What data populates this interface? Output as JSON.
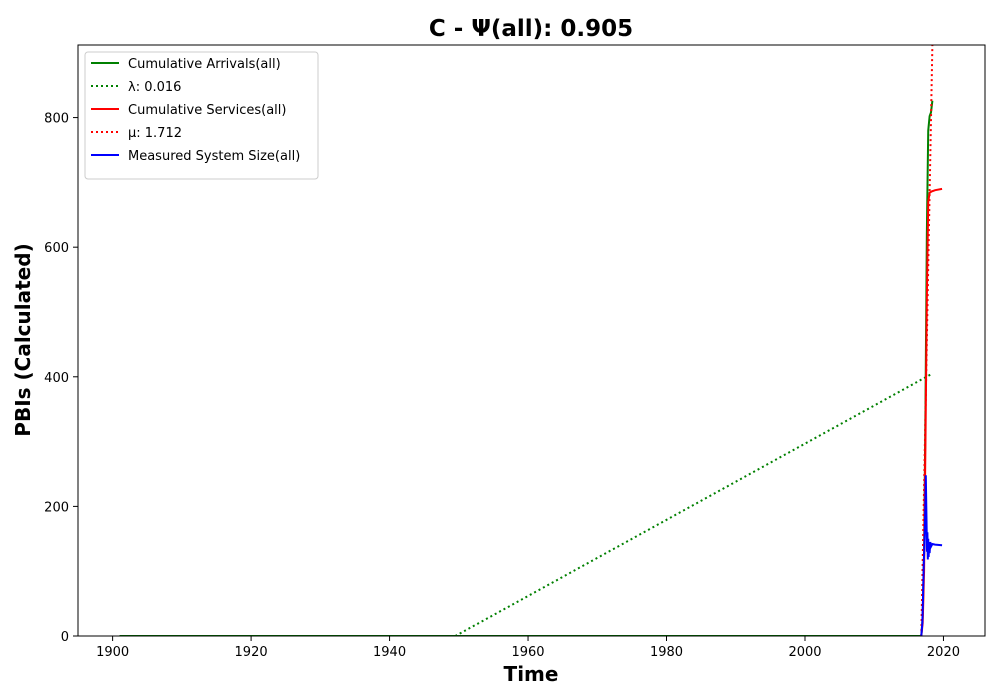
{
  "chart_data": {
    "type": "line",
    "title": "C -  Ψ(all): 0.905",
    "xlabel": "Time",
    "ylabel": "PBIs (Calculated)",
    "xlim": [
      1895,
      2026
    ],
    "ylim": [
      0,
      912
    ],
    "xticks": [
      1900,
      1920,
      1940,
      1960,
      1980,
      2000,
      2020
    ],
    "yticks": [
      0,
      200,
      400,
      600,
      800
    ],
    "grid": false,
    "legend_position": "top-left",
    "series": [
      {
        "name": "Cumulative Arrivals(all)",
        "color": "#008000",
        "dash": "solid",
        "points": [
          [
            1901,
            0
          ],
          [
            2016.8,
            0
          ],
          [
            2017.0,
            30
          ],
          [
            2017.2,
            130
          ],
          [
            2017.4,
            350
          ],
          [
            2017.6,
            620
          ],
          [
            2017.8,
            780
          ],
          [
            2018.0,
            802
          ],
          [
            2018.2,
            808
          ],
          [
            2018.4,
            826
          ]
        ]
      },
      {
        "name": "λ: 0.016",
        "color": "#008000",
        "dash": "dotted",
        "points": [
          [
            1949.5,
            0
          ],
          [
            2018.4,
            405
          ]
        ]
      },
      {
        "name": "Cumulative Services(all)",
        "color": "#ff0000",
        "dash": "solid",
        "points": [
          [
            2016.8,
            0
          ],
          [
            2017.0,
            20
          ],
          [
            2017.2,
            100
          ],
          [
            2017.4,
            300
          ],
          [
            2017.6,
            520
          ],
          [
            2017.8,
            670
          ],
          [
            2018.0,
            684
          ],
          [
            2018.3,
            686
          ],
          [
            2018.8,
            688
          ],
          [
            2019.8,
            690
          ]
        ]
      },
      {
        "name": "μ: 1.712",
        "color": "#ff0000",
        "dash": "dotted",
        "points": [
          [
            2016.8,
            0
          ],
          [
            2018.4,
            912
          ]
        ]
      },
      {
        "name": "Measured System Size(all)",
        "color": "#0000ff",
        "dash": "solid",
        "points": [
          [
            2016.8,
            0
          ],
          [
            2016.95,
            20
          ],
          [
            2017.05,
            60
          ],
          [
            2017.15,
            110
          ],
          [
            2017.25,
            140
          ],
          [
            2017.35,
            185
          ],
          [
            2017.45,
            248
          ],
          [
            2017.55,
            180
          ],
          [
            2017.62,
            130
          ],
          [
            2017.68,
            160
          ],
          [
            2017.74,
            118
          ],
          [
            2017.8,
            150
          ],
          [
            2017.86,
            122
          ],
          [
            2017.92,
            140
          ],
          [
            2018.0,
            128
          ],
          [
            2018.1,
            145
          ],
          [
            2018.2,
            138
          ],
          [
            2018.4,
            142
          ],
          [
            2018.8,
            141
          ],
          [
            2019.8,
            140
          ]
        ]
      }
    ]
  }
}
